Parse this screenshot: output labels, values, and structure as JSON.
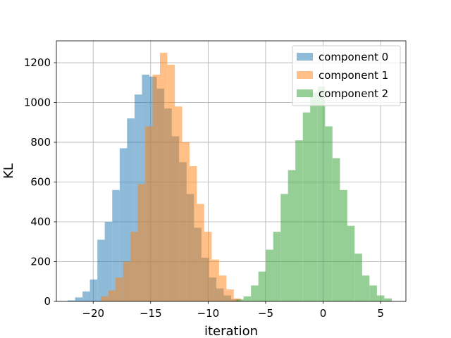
{
  "chart_data": {
    "type": "bar",
    "subtype": "overlaid-histogram",
    "title": "",
    "xlabel": "iteration",
    "ylabel": "KL",
    "xlim": [
      -23.2,
      7.2
    ],
    "ylim": [
      0,
      1310
    ],
    "xticks": [
      -20,
      -15,
      -10,
      -5,
      0,
      5
    ],
    "xtick_labels": [
      "−20",
      "−15",
      "−10",
      "−5",
      "0",
      "5"
    ],
    "yticks": [
      0,
      200,
      400,
      600,
      800,
      1000,
      1200
    ],
    "ytick_labels": [
      "0",
      "200",
      "400",
      "600",
      "800",
      "1000",
      "1200"
    ],
    "grid": true,
    "legend_position": "top-right",
    "series": [
      {
        "name": "component 0",
        "color": "#1f77b4",
        "alpha": 0.5,
        "bin_width": 0.647,
        "x": [
          -21.9,
          -21.25,
          -20.6,
          -19.96,
          -19.31,
          -18.67,
          -18.02,
          -17.37,
          -16.73,
          -16.08,
          -15.43,
          -14.79,
          -14.14,
          -13.49,
          -12.85,
          -12.2,
          -11.55,
          -10.91,
          -10.26,
          -9.61,
          -8.97,
          -8.32,
          -7.67
        ],
        "values": [
          5,
          20,
          50,
          110,
          310,
          400,
          560,
          770,
          920,
          1040,
          1140,
          1130,
          1070,
          970,
          830,
          700,
          540,
          370,
          220,
          120,
          65,
          30,
          10
        ]
      },
      {
        "name": "component 1",
        "color": "#ff7f0e",
        "alpha": 0.5,
        "bin_width": 0.642,
        "x": [
          -19.0,
          -18.36,
          -17.72,
          -17.07,
          -16.43,
          -15.79,
          -15.15,
          -14.51,
          -13.87,
          -13.22,
          -12.58,
          -11.94,
          -11.3,
          -10.66,
          -10.01,
          -9.37,
          -8.73,
          -8.09,
          -7.45
        ],
        "values": [
          25,
          55,
          120,
          200,
          350,
          590,
          880,
          1140,
          1250,
          1190,
          980,
          800,
          680,
          490,
          350,
          210,
          130,
          60,
          15
        ]
      },
      {
        "name": "component 2",
        "color": "#2ca02c",
        "alpha": 0.5,
        "bin_width": 0.644,
        "x": [
          -7.24,
          -6.6,
          -5.95,
          -5.31,
          -4.66,
          -4.02,
          -3.37,
          -2.73,
          -2.09,
          -1.44,
          -0.8,
          -0.15,
          0.49,
          1.14,
          1.78,
          2.42,
          3.07,
          3.71,
          4.36,
          5.0,
          5.65
        ],
        "values": [
          10,
          25,
          80,
          150,
          260,
          350,
          540,
          660,
          810,
          950,
          1050,
          1080,
          880,
          720,
          560,
          380,
          240,
          130,
          80,
          30,
          15
        ]
      }
    ]
  }
}
